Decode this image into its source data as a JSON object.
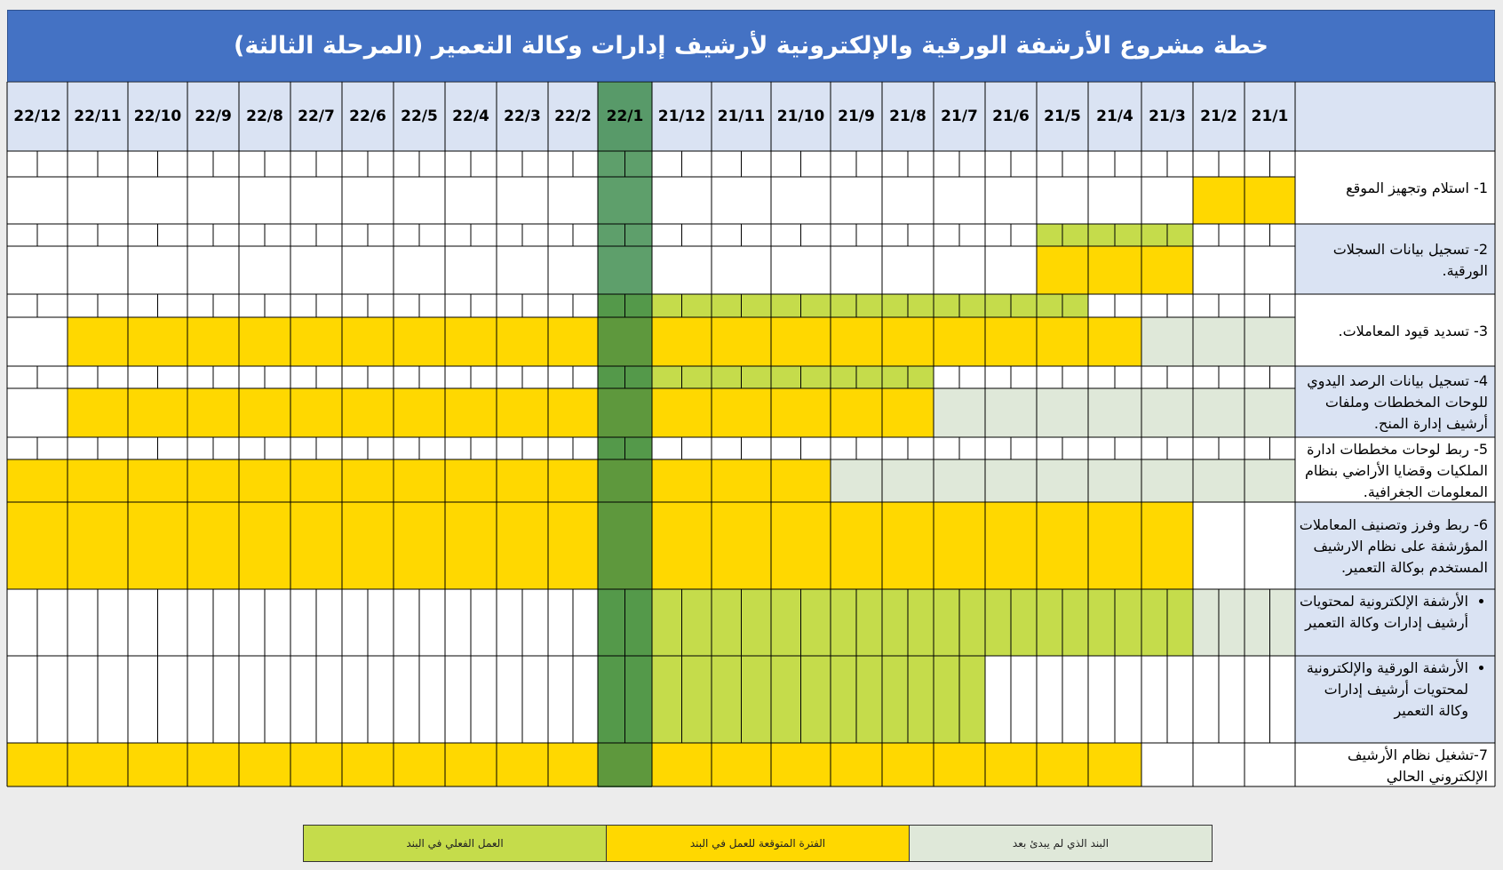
{
  "title": "خطة مشروع الأرشفة الورقية والإلكترونية لأرشيف إدارات وكالة التعمير (المرحلة الثالثة)",
  "months": [
    "21/1",
    "21/2",
    "21/3",
    "21/4",
    "21/5",
    "21/6",
    "21/7",
    "21/8",
    "21/9",
    "21/10",
    "21/11",
    "21/12",
    "22/1",
    "22/2",
    "22/3",
    "22/4",
    "22/5",
    "22/6",
    "22/7",
    "22/8",
    "22/9",
    "22/10",
    "22/11",
    "22/12"
  ],
  "current_month_index": 12,
  "colors": {
    "header_blue": "#4472c4",
    "header_light": "#dae3f3",
    "actual": "#c5dc4b",
    "expected": "#ffd800",
    "not_started": "#dfe8d9",
    "current_column": "#3a8a4a"
  },
  "tasks": [
    {
      "label": "1- استلام وتجهيز الموقع",
      "actual": null,
      "expected": [
        0,
        1
      ],
      "not_started": null
    },
    {
      "label": "2- تسجيل بيانات السجلات الورقية.",
      "actual": [
        2,
        4
      ],
      "expected": [
        2,
        4
      ],
      "not_started": null
    },
    {
      "label": "3- تسديد قيود المعاملات.",
      "actual": [
        4,
        12
      ],
      "expected": [
        3,
        22
      ],
      "not_started": [
        0,
        2
      ]
    },
    {
      "label": "4- تسجيل بيانات الرصد اليدوي للوحات المخططات وملفات أرشيف إدارة المنح.",
      "actual": [
        7,
        12
      ],
      "expected": [
        7,
        22
      ],
      "not_started": [
        0,
        6
      ]
    },
    {
      "label": "5- ربط لوحات مخططات ادارة الملكيات وقضايا الأراضي بنظام المعلومات الجغرافية.",
      "actual": [
        12,
        12
      ],
      "expected": [
        9,
        23
      ],
      "not_started": [
        0,
        8
      ]
    },
    {
      "label": "6- ربط وفرز وتصنيف المعاملات المؤرشفة على نظام الارشيف المستخدم بوكالة التعمير.",
      "actual": null,
      "expected": [
        2,
        23
      ],
      "not_started": null
    },
    {
      "label": "الأرشفة الإلكترونية لمحتويات أرشيف إدارات وكالة التعمير",
      "bullet": true,
      "actual": [
        2,
        12
      ],
      "expected": null,
      "not_started": [
        0,
        1
      ]
    },
    {
      "label": "الأرشفة الورقية والإلكترونية لمحتويات أرشيف إدارات وكالة التعمير",
      "bullet": true,
      "actual": [
        6,
        12
      ],
      "expected": null,
      "not_started": null
    },
    {
      "label": "7-تشغيل نظام الأرشيف الإلكتروني الحالي",
      "actual": null,
      "expected": [
        3,
        23
      ],
      "not_started": null
    }
  ],
  "legend": [
    {
      "label": "العمل الفعلي في البند",
      "color": "#c5dc4b"
    },
    {
      "label": "الفترة المتوقعة للعمل في البند",
      "color": "#ffd800"
    },
    {
      "label": "البند الذي لم يبدئ بعد",
      "color": "#dfe8d9"
    }
  ]
}
